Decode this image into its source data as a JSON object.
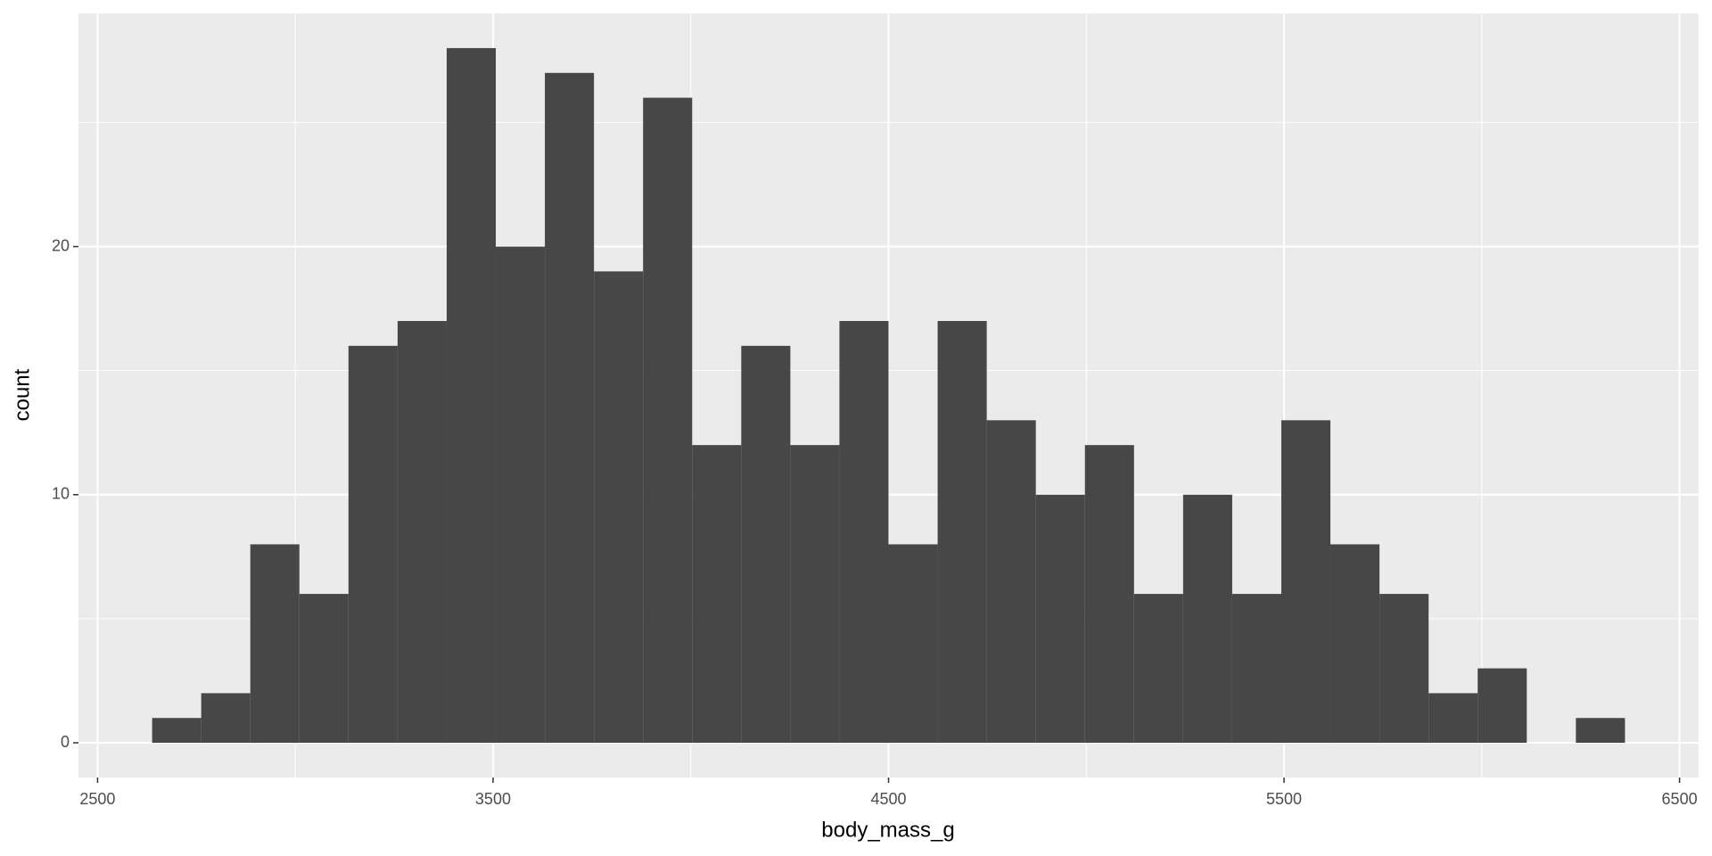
{
  "chart_data": {
    "type": "histogram",
    "x_label": "body_mass_g",
    "y_label": "count",
    "bins": [
      2637.93,
      2762.07,
      2886.21,
      3010.34,
      3134.48,
      3258.62,
      3382.76,
      3506.9,
      3631.03,
      3755.17,
      3879.31,
      4003.45,
      4127.59,
      4251.72,
      4375.86,
      4500,
      4624.14,
      4748.28,
      4872.41,
      4996.55,
      5120.69,
      5244.83,
      5368.97,
      5493.1,
      5617.24,
      5741.38,
      5865.52,
      5989.66,
      6113.79,
      6237.93,
      6362.07
    ],
    "values": [
      1,
      2,
      8,
      6,
      16,
      17,
      28,
      20,
      27,
      19,
      26,
      12,
      16,
      12,
      17,
      8,
      17,
      13,
      10,
      12,
      6,
      10,
      6,
      13,
      8,
      6,
      2,
      3,
      0,
      1
    ],
    "color": "#474747",
    "xlim": [
      2451.72,
      6548.28
    ],
    "xticks": [
      2500,
      3500,
      4500,
      5500,
      6500
    ],
    "ylim": [
      -1.4,
      29.4
    ],
    "yticks": [
      0,
      10,
      20
    ],
    "grid": true
  }
}
